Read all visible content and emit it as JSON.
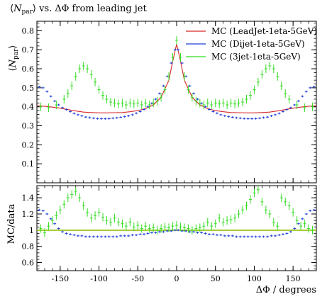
{
  "chart_data": [
    {
      "type": "scatter",
      "panel": "main",
      "title": "⟨N_par⟩ vs. ΔΦ from leading jet",
      "title_parts": {
        "open": "⟨",
        "symbol": "N",
        "sub": "par",
        "close": "⟩",
        "rest": " vs. ΔΦ from leading jet"
      },
      "ylabel_parts": {
        "open": "⟨",
        "symbol": "N",
        "sub": "par",
        "close": "⟩"
      },
      "xlim": [
        -180,
        180
      ],
      "ylim": [
        0.0,
        0.85
      ],
      "yticks": [
        "0.1",
        "0.2",
        "0.3",
        "0.4",
        "0.5",
        "0.6",
        "0.7",
        "0.8"
      ],
      "yticks_values": [
        0.1,
        0.2,
        0.3,
        0.4,
        0.5,
        0.6,
        0.7,
        0.8
      ],
      "legend_position": "top-right",
      "series": [
        {
          "name": "MC (LeadJet-1eta-5GeV)",
          "color": "#d62728",
          "style": "line",
          "x": [
            -180,
            -170,
            -160,
            -150,
            -140,
            -130,
            -120,
            -110,
            -100,
            -90,
            -80,
            -70,
            -60,
            -50,
            -40,
            -30,
            -20,
            -10,
            -5,
            0,
            5,
            10,
            20,
            30,
            40,
            50,
            60,
            70,
            80,
            90,
            100,
            110,
            120,
            130,
            140,
            150,
            160,
            170,
            180
          ],
          "y": [
            0.405,
            0.403,
            0.398,
            0.393,
            0.385,
            0.378,
            0.372,
            0.37,
            0.368,
            0.368,
            0.369,
            0.37,
            0.374,
            0.38,
            0.39,
            0.41,
            0.45,
            0.54,
            0.64,
            0.73,
            0.64,
            0.54,
            0.45,
            0.41,
            0.39,
            0.38,
            0.374,
            0.37,
            0.369,
            0.368,
            0.368,
            0.37,
            0.372,
            0.378,
            0.385,
            0.393,
            0.398,
            0.403,
            0.405
          ]
        },
        {
          "name": "MC (Dijet-1eta-5GeV)",
          "color": "#1f3fd6",
          "style": "points",
          "x": [
            -177,
            -172,
            -167,
            -162,
            -157,
            -152,
            -147,
            -142,
            -137,
            -132,
            -127,
            -122,
            -117,
            -112,
            -107,
            -102,
            -97,
            -92,
            -87,
            -82,
            -77,
            -72,
            -67,
            -62,
            -57,
            -52,
            -47,
            -42,
            -37,
            -32,
            -27,
            -22,
            -17,
            -12,
            -7,
            -2,
            2,
            7,
            12,
            17,
            22,
            27,
            32,
            37,
            42,
            47,
            52,
            57,
            62,
            67,
            72,
            77,
            82,
            87,
            92,
            97,
            102,
            107,
            112,
            117,
            122,
            127,
            132,
            137,
            142,
            147,
            152,
            157,
            162,
            167,
            172,
            177
          ],
          "y": [
            0.505,
            0.5,
            0.48,
            0.455,
            0.43,
            0.41,
            0.395,
            0.385,
            0.375,
            0.365,
            0.358,
            0.352,
            0.346,
            0.343,
            0.34,
            0.338,
            0.337,
            0.337,
            0.338,
            0.34,
            0.342,
            0.345,
            0.348,
            0.352,
            0.358,
            0.366,
            0.375,
            0.386,
            0.4,
            0.418,
            0.44,
            0.47,
            0.51,
            0.56,
            0.63,
            0.7,
            0.7,
            0.63,
            0.56,
            0.51,
            0.47,
            0.44,
            0.418,
            0.4,
            0.386,
            0.375,
            0.366,
            0.358,
            0.352,
            0.348,
            0.345,
            0.342,
            0.34,
            0.338,
            0.337,
            0.337,
            0.338,
            0.34,
            0.343,
            0.346,
            0.352,
            0.358,
            0.365,
            0.375,
            0.385,
            0.395,
            0.41,
            0.43,
            0.455,
            0.48,
            0.5,
            0.505
          ]
        },
        {
          "name": "MC (3jet-1eta-5GeV)",
          "color": "#33dd22",
          "style": "points",
          "x": [
            -175,
            -165,
            -155,
            -145,
            -140,
            -135,
            -130,
            -125,
            -120,
            -115,
            -110,
            -105,
            -100,
            -95,
            -90,
            -85,
            -80,
            -75,
            -70,
            -65,
            -60,
            -55,
            -50,
            -45,
            -40,
            -35,
            -30,
            -25,
            -20,
            -15,
            -10,
            -5,
            0,
            5,
            10,
            15,
            20,
            25,
            30,
            35,
            40,
            45,
            50,
            55,
            60,
            65,
            70,
            75,
            80,
            85,
            90,
            95,
            100,
            105,
            110,
            115,
            120,
            125,
            130,
            135,
            140,
            145,
            155,
            165,
            175
          ],
          "y": [
            0.4,
            0.395,
            0.41,
            0.44,
            0.47,
            0.51,
            0.56,
            0.6,
            0.615,
            0.6,
            0.57,
            0.53,
            0.49,
            0.46,
            0.44,
            0.425,
            0.42,
            0.415,
            0.42,
            0.41,
            0.42,
            0.415,
            0.42,
            0.41,
            0.42,
            0.41,
            0.42,
            0.43,
            0.45,
            0.49,
            0.56,
            0.66,
            0.75,
            0.66,
            0.56,
            0.49,
            0.45,
            0.43,
            0.42,
            0.41,
            0.42,
            0.41,
            0.42,
            0.415,
            0.42,
            0.41,
            0.42,
            0.415,
            0.42,
            0.425,
            0.44,
            0.46,
            0.49,
            0.53,
            0.57,
            0.6,
            0.615,
            0.6,
            0.56,
            0.51,
            0.47,
            0.44,
            0.41,
            0.395,
            0.4
          ]
        }
      ]
    },
    {
      "type": "scatter",
      "panel": "ratio",
      "ylabel": "MC/data",
      "xlabel": "ΔΦ / degrees",
      "xlim": [
        -180,
        180
      ],
      "ylim": [
        0.5,
        1.55
      ],
      "yticks": [
        "0.6",
        "0.8",
        "1",
        "1.2",
        "1.4"
      ],
      "yticks_values": [
        0.6,
        0.8,
        1.0,
        1.2,
        1.4
      ],
      "xticks": [
        "-150",
        "-100",
        "-50",
        "0",
        "50",
        "100",
        "150"
      ],
      "xticks_values": [
        -150,
        -100,
        -50,
        0,
        50,
        100,
        150
      ],
      "series": [
        {
          "name": "MC (LeadJet-1eta-5GeV)",
          "color": "#8fbf00",
          "style": "line",
          "x": [
            -180,
            180
          ],
          "y": [
            1.0,
            1.0
          ]
        },
        {
          "name": "MC (Dijet-1eta-5GeV)",
          "color": "#1f3fd6",
          "style": "points",
          "x": [
            -177,
            -172,
            -167,
            -162,
            -157,
            -152,
            -147,
            -142,
            -137,
            -132,
            -127,
            -122,
            -117,
            -112,
            -107,
            -102,
            -97,
            -92,
            -87,
            -82,
            -77,
            -72,
            -67,
            -62,
            -57,
            -52,
            -47,
            -42,
            -37,
            -32,
            -27,
            -22,
            -17,
            -12,
            -7,
            -2,
            2,
            7,
            12,
            17,
            22,
            27,
            32,
            37,
            42,
            47,
            52,
            57,
            62,
            67,
            72,
            77,
            82,
            87,
            92,
            97,
            102,
            107,
            112,
            117,
            122,
            127,
            132,
            137,
            142,
            147,
            152,
            157,
            162,
            167,
            172,
            177
          ],
          "y": [
            1.25,
            1.24,
            1.2,
            1.14,
            1.08,
            1.02,
            0.98,
            0.96,
            0.95,
            0.94,
            0.93,
            0.93,
            0.92,
            0.92,
            0.92,
            0.92,
            0.92,
            0.92,
            0.92,
            0.92,
            0.92,
            0.93,
            0.93,
            0.93,
            0.94,
            0.94,
            0.95,
            0.95,
            0.96,
            0.97,
            0.97,
            0.98,
            0.98,
            0.99,
            0.99,
            1.0,
            1.0,
            0.99,
            0.99,
            0.98,
            0.98,
            0.97,
            0.97,
            0.96,
            0.95,
            0.95,
            0.94,
            0.94,
            0.93,
            0.93,
            0.93,
            0.92,
            0.92,
            0.92,
            0.92,
            0.92,
            0.92,
            0.92,
            0.92,
            0.92,
            0.93,
            0.93,
            0.94,
            0.95,
            0.96,
            0.98,
            1.02,
            1.08,
            1.14,
            1.2,
            1.24,
            1.25
          ]
        },
        {
          "name": "MC (3jet-1eta-5GeV)",
          "color": "#33dd22",
          "style": "points",
          "x": [
            -175,
            -170,
            -165,
            -160,
            -155,
            -150,
            -145,
            -140,
            -135,
            -130,
            -125,
            -120,
            -115,
            -110,
            -105,
            -100,
            -95,
            -90,
            -85,
            -80,
            -75,
            -70,
            -65,
            -60,
            -55,
            -50,
            -45,
            -40,
            -35,
            -30,
            -25,
            -20,
            -15,
            -10,
            -5,
            0,
            5,
            10,
            15,
            20,
            25,
            30,
            35,
            40,
            45,
            50,
            55,
            60,
            65,
            70,
            75,
            80,
            85,
            90,
            95,
            100,
            105,
            110,
            115,
            120,
            125,
            130,
            135,
            140,
            145,
            150,
            155,
            160,
            165,
            170,
            175
          ],
          "y": [
            1.02,
            0.97,
            1.05,
            1.12,
            1.18,
            1.25,
            1.32,
            1.4,
            1.44,
            1.48,
            1.4,
            1.3,
            1.22,
            1.15,
            1.18,
            1.22,
            1.16,
            1.12,
            1.1,
            1.15,
            1.1,
            1.08,
            1.05,
            1.1,
            1.04,
            1.06,
            1.02,
            1.05,
            1.02,
            1.03,
            1.0,
            1.02,
            1.04,
            1.03,
            1.05,
            1.06,
            1.04,
            1.03,
            1.02,
            1.0,
            1.02,
            1.03,
            1.05,
            1.1,
            1.05,
            1.08,
            1.15,
            1.1,
            1.12,
            1.13,
            1.15,
            1.2,
            1.25,
            1.3,
            1.38,
            1.46,
            1.5,
            1.35,
            1.25,
            1.2,
            1.1,
            1.05,
            1.4,
            1.35,
            1.3,
            1.22,
            1.12,
            1.05,
            1.08,
            1.02,
            1.0
          ]
        }
      ]
    }
  ]
}
